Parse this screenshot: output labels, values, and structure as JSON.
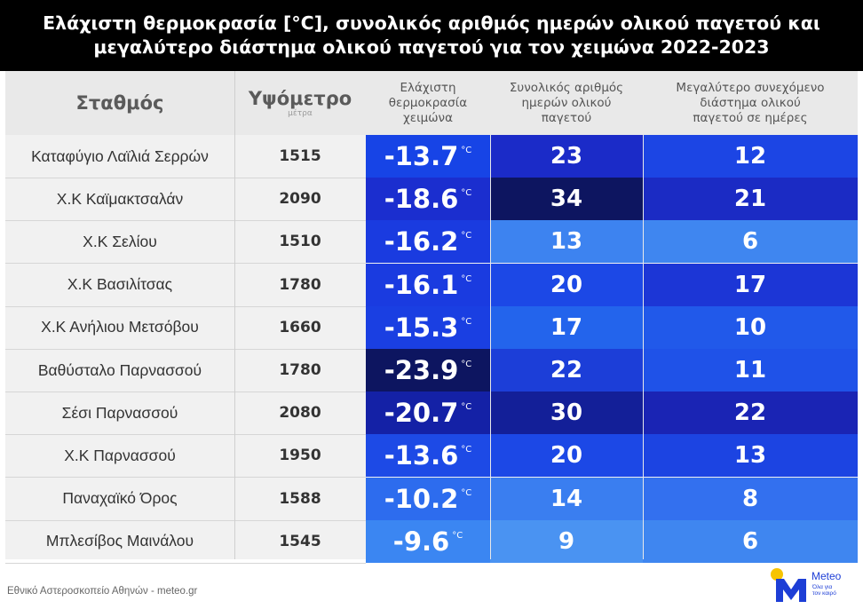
{
  "title": {
    "line1": "Ελάχιστη θερμοκρασία [°C], συνολικός αριθμός ημερών ολικού παγετού και",
    "line2": "μεγαλύτερο διάστημα ολικού παγετού για τον χειμώνα 2022-2023"
  },
  "header": {
    "station": "Σταθμός",
    "altitude": "Υψόμετρο",
    "altitude_unit": "μέτρα",
    "min_temp": [
      "Ελάχιστη",
      "θερμοκρασία",
      "χειμώνα"
    ],
    "total_days": [
      "Συνολικός αριθμός",
      "ημερών ολικού",
      "παγετού"
    ],
    "longest_period": [
      "Μεγαλύτερο συνεχόμενο",
      "διάστημα ολικού",
      "παγετού σε ημέρες"
    ]
  },
  "temp_unit": "°C",
  "rows": [
    {
      "station": "Καταφύγιο Λαϊλιά Σερρών",
      "altitude": "1515",
      "min_temp": "-13.7",
      "total_days": "23",
      "longest": "12",
      "min_color": "#1744e6",
      "total_color": "#1b2bc8",
      "longest_color": "#1c45e4"
    },
    {
      "station": "Χ.Κ Καϊμακτσαλάν",
      "altitude": "2090",
      "min_temp": "-18.6",
      "total_days": "34",
      "longest": "21",
      "min_color": "#1b2ecf",
      "total_color": "#0d1560",
      "longest_color": "#1b2bc4"
    },
    {
      "station": "Χ.Κ Σελίου",
      "altitude": "1510",
      "min_temp": "-16.2",
      "total_days": "13",
      "longest": "6",
      "min_color": "#1a3be0",
      "total_color": "#3d83f0",
      "longest_color": "#3f86f0"
    },
    {
      "station": "Χ.Κ Βασιλίτσας",
      "altitude": "1780",
      "min_temp": "-16.1",
      "total_days": "20",
      "longest": "17",
      "min_color": "#1a3be0",
      "total_color": "#1c48e6",
      "longest_color": "#1c36d6"
    },
    {
      "station": "Χ.Κ Ανήλιου Μετσόβου",
      "altitude": "1660",
      "min_temp": "-15.3",
      "total_days": "17",
      "longest": "10",
      "min_color": "#1a3fe2",
      "total_color": "#2364ec",
      "longest_color": "#2159ea"
    },
    {
      "station": "Βαθύσταλο Παρνασσού",
      "altitude": "1780",
      "min_temp": "-23.9",
      "total_days": "22",
      "longest": "11",
      "min_color": "#0d1560",
      "total_color": "#1c3ed8",
      "longest_color": "#1f52e8"
    },
    {
      "station": "Σέσι Παρνασσού",
      "altitude": "2080",
      "min_temp": "-20.7",
      "total_days": "30",
      "longest": "22",
      "min_color": "#1421a6",
      "total_color": "#131f98",
      "longest_color": "#1a24b4"
    },
    {
      "station": "Χ.Κ Παρνασσού",
      "altitude": "1950",
      "min_temp": "-13.6",
      "total_days": "20",
      "longest": "13",
      "min_color": "#1d4ae6",
      "total_color": "#1c48e6",
      "longest_color": "#1c44e2"
    },
    {
      "station": "Παναχαϊκό Όρος",
      "altitude": "1588",
      "min_temp": "-10.2",
      "total_days": "14",
      "longest": "8",
      "min_color": "#2d6cee",
      "total_color": "#3a7ef0",
      "longest_color": "#3370ef"
    },
    {
      "station": "Μπλεσίβος Μαινάλου",
      "altitude": "1545",
      "min_temp": "-9.6",
      "total_days": "9",
      "longest": "6",
      "min_color": "#3b86f2",
      "total_color": "#4a93f2",
      "longest_color": "#3f86f0"
    }
  ],
  "footer": "Εθνικό Αστεροσκοπείο Αθηνών - meteo.gr",
  "logo": {
    "word": "Meteo",
    "tagline_line1": "Όλα για",
    "tagline_line2": "τον καιρό"
  }
}
